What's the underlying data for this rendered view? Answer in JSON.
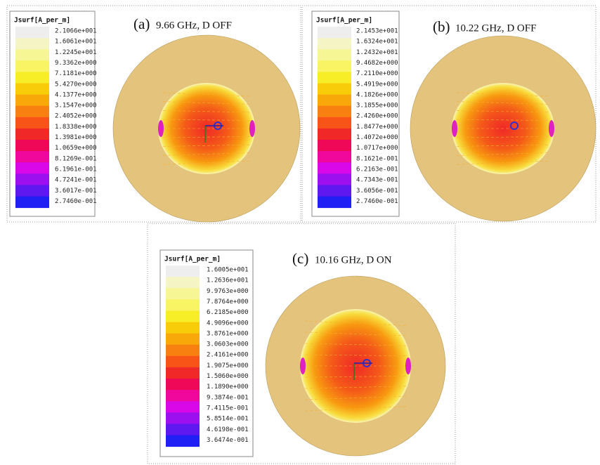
{
  "panels": [
    {
      "label": "(a)",
      "caption": "9.66 GHz, D OFF",
      "legend": {
        "title": "Jsurf[A_per_m]",
        "labels": [
          "2.1066e+001",
          "1.6061e+001",
          "1.2245e+001",
          "9.3362e+000",
          "7.1181e+000",
          "5.4270e+000",
          "4.1377e+000",
          "3.1547e+000",
          "2.4052e+000",
          "1.8338e+000",
          "1.3981e+000",
          "1.0659e+000",
          "8.1269e-001",
          "6.1961e-001",
          "4.7241e-001",
          "3.6017e-001",
          "2.7460e-001"
        ]
      }
    },
    {
      "label": "(b)",
      "caption": "10.22 GHz, D OFF",
      "legend": {
        "title": "Jsurf[A_per_m]",
        "labels": [
          "2.1453e+001",
          "1.6324e+001",
          "1.2432e+001",
          "9.4682e+000",
          "7.2110e+000",
          "5.4919e+000",
          "4.1826e+000",
          "3.1855e+000",
          "2.4260e+000",
          "1.8477e+000",
          "1.4072e+000",
          "1.0717e+000",
          "8.1621e-001",
          "6.2163e-001",
          "4.7343e-001",
          "3.6056e-001",
          "2.7460e-001"
        ]
      }
    },
    {
      "label": "(c)",
      "caption": "10.16 GHz, D ON",
      "legend": {
        "title": "Jsurf[A_per_m]",
        "labels": [
          "1.6005e+001",
          "1.2636e+001",
          "9.9763e+000",
          "7.8764e+000",
          "6.2185e+000",
          "4.9096e+000",
          "3.8761e+000",
          "3.0603e+000",
          "2.4161e+000",
          "1.9075e+000",
          "1.5060e+000",
          "1.1890e+000",
          "9.3874e-001",
          "7.4115e-001",
          "5.8514e-001",
          "4.6198e-001",
          "3.6474e-001"
        ]
      }
    }
  ]
}
